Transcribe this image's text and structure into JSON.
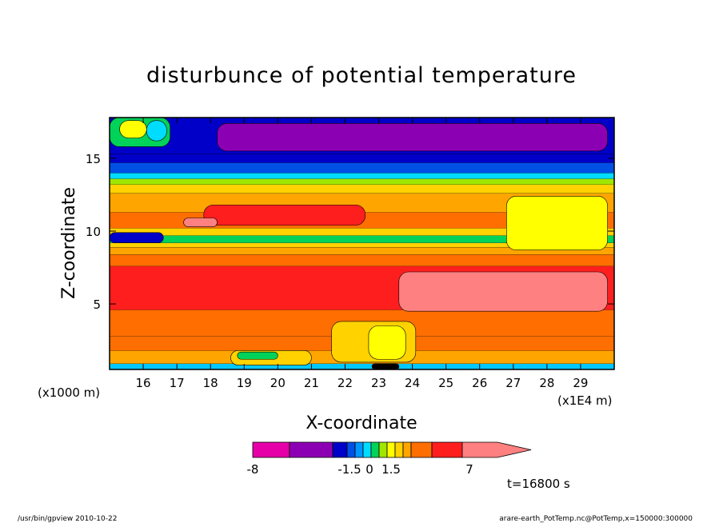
{
  "chart_data": {
    "type": "heatmap",
    "title": "disturbunce of potential temperature",
    "xlabel": "X-coordinate",
    "ylabel": "Z-coordinate",
    "x_unit_left": "(x1000 m)",
    "x_unit_right": "(x1E4 m)",
    "x_ticks": [
      "16",
      "17",
      "18",
      "19",
      "20",
      "21",
      "22",
      "23",
      "24",
      "25",
      "26",
      "27",
      "28",
      "29"
    ],
    "x_tick_values": [
      16,
      17,
      18,
      19,
      20,
      21,
      22,
      23,
      24,
      25,
      26,
      27,
      28,
      29
    ],
    "xlim": [
      15,
      30
    ],
    "y_ticks": [
      "5",
      "10",
      "15"
    ],
    "y_tick_values": [
      5,
      10,
      15
    ],
    "ylim": [
      0.5,
      17.8
    ],
    "time_label": "t=16800 s",
    "colorbar": {
      "tick_labels": [
        "-8",
        "-1.5",
        "0",
        "1.5",
        "7"
      ],
      "colors": [
        "#e600a8",
        "#8c00b4",
        "#0000c8",
        "#0050e6",
        "#0096ff",
        "#00dcff",
        "#00d25a",
        "#a0e600",
        "#ffff00",
        "#ffd200",
        "#ffa500",
        "#ff6e00",
        "#ff1e1e",
        "#ff8080"
      ]
    },
    "bands": [
      {
        "zmin": 0.5,
        "zmax": 0.9,
        "color": "#00c8ff"
      },
      {
        "zmin": 0.9,
        "zmax": 1.8,
        "color": "#ffa500"
      },
      {
        "zmin": 1.8,
        "zmax": 2.8,
        "color": "#ff6e00"
      },
      {
        "zmin": 2.8,
        "zmax": 4.6,
        "color": "#ff6e00"
      },
      {
        "zmin": 4.6,
        "zmax": 7.6,
        "color": "#ff1e1e"
      },
      {
        "zmin": 7.6,
        "zmax": 8.4,
        "color": "#ff6e00"
      },
      {
        "zmin": 8.4,
        "zmax": 8.9,
        "color": "#ffa500"
      },
      {
        "zmin": 8.9,
        "zmax": 9.2,
        "color": "#ffd200"
      },
      {
        "zmin": 9.2,
        "zmax": 9.7,
        "color": "#00d25a"
      },
      {
        "zmin": 9.7,
        "zmax": 10.2,
        "color": "#ffd200"
      },
      {
        "zmin": 10.2,
        "zmax": 11.3,
        "color": "#ff6e00"
      },
      {
        "zmin": 11.3,
        "zmax": 12.6,
        "color": "#ffa500"
      },
      {
        "zmin": 12.6,
        "zmax": 13.2,
        "color": "#ffd200"
      },
      {
        "zmin": 13.2,
        "zmax": 13.6,
        "color": "#a0e600"
      },
      {
        "zmin": 13.6,
        "zmax": 14.0,
        "color": "#00dcff"
      },
      {
        "zmin": 14.0,
        "zmax": 14.7,
        "color": "#0050e6"
      },
      {
        "zmin": 14.7,
        "zmax": 15.3,
        "color": "#0000c8"
      },
      {
        "zmin": 15.3,
        "zmax": 17.8,
        "color": "#0000c8"
      }
    ],
    "regions": [
      {
        "x0": 18.2,
        "x1": 29.8,
        "z0": 15.5,
        "z1": 17.4,
        "color": "#8c00b4"
      },
      {
        "x0": 23.6,
        "x1": 29.8,
        "z0": 4.5,
        "z1": 7.2,
        "color": "#ff8080"
      },
      {
        "x0": 26.8,
        "x1": 29.8,
        "z0": 8.7,
        "z1": 12.4,
        "color": "#ffff00"
      },
      {
        "x0": 15.0,
        "x1": 16.8,
        "z0": 15.8,
        "z1": 17.8,
        "color": "#00d25a"
      },
      {
        "x0": 15.3,
        "x1": 16.1,
        "z0": 16.4,
        "z1": 17.6,
        "color": "#ffff00"
      },
      {
        "x0": 16.1,
        "x1": 16.7,
        "z0": 16.2,
        "z1": 17.6,
        "color": "#00dcff"
      },
      {
        "x0": 17.8,
        "x1": 22.6,
        "z0": 10.4,
        "z1": 11.8,
        "color": "#ff1e1e"
      },
      {
        "x0": 17.2,
        "x1": 18.2,
        "z0": 10.3,
        "z1": 10.9,
        "color": "#ff8080"
      },
      {
        "x0": 15.0,
        "x1": 16.6,
        "z0": 9.2,
        "z1": 9.9,
        "color": "#0000c8"
      },
      {
        "x0": 21.6,
        "x1": 24.1,
        "z0": 1.0,
        "z1": 3.8,
        "color": "#ffd200"
      },
      {
        "x0": 22.7,
        "x1": 23.8,
        "z0": 1.2,
        "z1": 3.5,
        "color": "#ffff00"
      },
      {
        "x0": 18.6,
        "x1": 21.0,
        "z0": 0.8,
        "z1": 1.8,
        "color": "#ffd200"
      },
      {
        "x0": 18.8,
        "x1": 20.0,
        "z0": 1.2,
        "z1": 1.7,
        "color": "#00d25a"
      },
      {
        "x0": 22.8,
        "x1": 23.6,
        "z0": 0.5,
        "z1": 0.9,
        "color": "#000000"
      }
    ]
  },
  "footer": {
    "left": "/usr/bin/gpview   2010-10-22",
    "right": "arare-earth_PotTemp.nc@PotTemp,x=150000:300000"
  }
}
